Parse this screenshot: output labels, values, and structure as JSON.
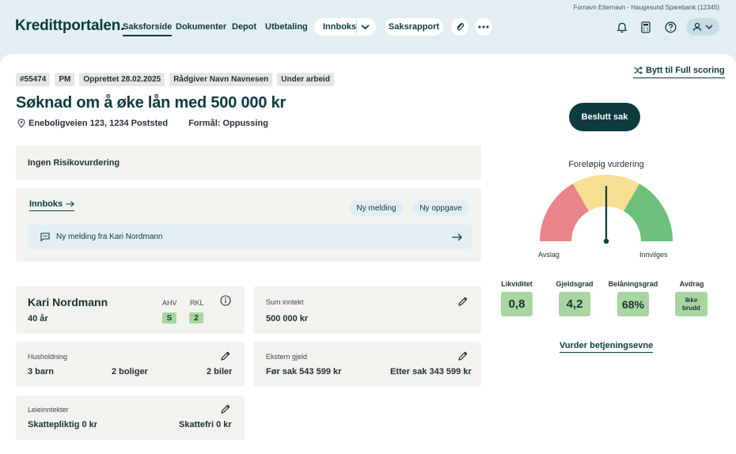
{
  "header": {
    "user_info": "Fornavn Etternavn - Haugesund Sparebank (12345)",
    "logo": "Kredittportalen.",
    "nav": [
      "Saksforside",
      "Dokumenter",
      "Depot",
      "Utbetaling"
    ],
    "inbox_label": "Innboks",
    "report_label": "Saksrapport"
  },
  "case": {
    "tags": [
      "#55474",
      "PM",
      "Opprettet 28.02.2025",
      "Rådgiver Navn Navnesen",
      "Under arbeid"
    ],
    "switch_label": "Bytt til Full scoring",
    "title": "Søknad om å øke lån med 500 000 kr",
    "address": "Eneboligveien 123, 1234 Poststed",
    "purpose": "Formål: Oppussing",
    "decide_label": "Beslutt sak"
  },
  "risk": {
    "label": "Ingen Risikovurdering"
  },
  "inbox": {
    "title": "Innboks",
    "new_message": "Ny melding",
    "new_task": "Ny oppgave",
    "message": "Ny melding fra Kari Nordmann"
  },
  "person": {
    "name": "Kari Nordmann",
    "age": "40 år",
    "ahv_label": "AHV",
    "ahv_value": "S",
    "rkl_label": "RKL",
    "rkl_value": "2"
  },
  "income": {
    "label": "Sum inntekt",
    "value": "500 000 kr"
  },
  "household": {
    "label": "Husholdning",
    "children": "3 barn",
    "homes": "2 boliger",
    "cars": "2 biler"
  },
  "debt": {
    "label": "Ekstern gjeld",
    "before": "Før sak 543 599 kr",
    "after": "Etter sak 343 599 kr"
  },
  "rent": {
    "label": "Leieinntekter",
    "taxable": "Skattepliktig 0 kr",
    "taxfree": "Skattefri 0 kr"
  },
  "assessment": {
    "title": "Foreløpig vurdering",
    "left_label": "Avslag",
    "right_label": "Innvilges",
    "needle": 0.5,
    "colors": {
      "red": "#e8848a",
      "yellow": "#f7df93",
      "green": "#6cc07a"
    }
  },
  "kpis": [
    {
      "label": "Likviditet",
      "value": "0,8"
    },
    {
      "label": "Gjeldsgrad",
      "value": "4,2"
    },
    {
      "label": "Belåningsgrad",
      "value": "68%"
    },
    {
      "label": "Avdrag",
      "value": "Ikke brudd"
    }
  ],
  "service_link": "Vurder betjeningsevne"
}
